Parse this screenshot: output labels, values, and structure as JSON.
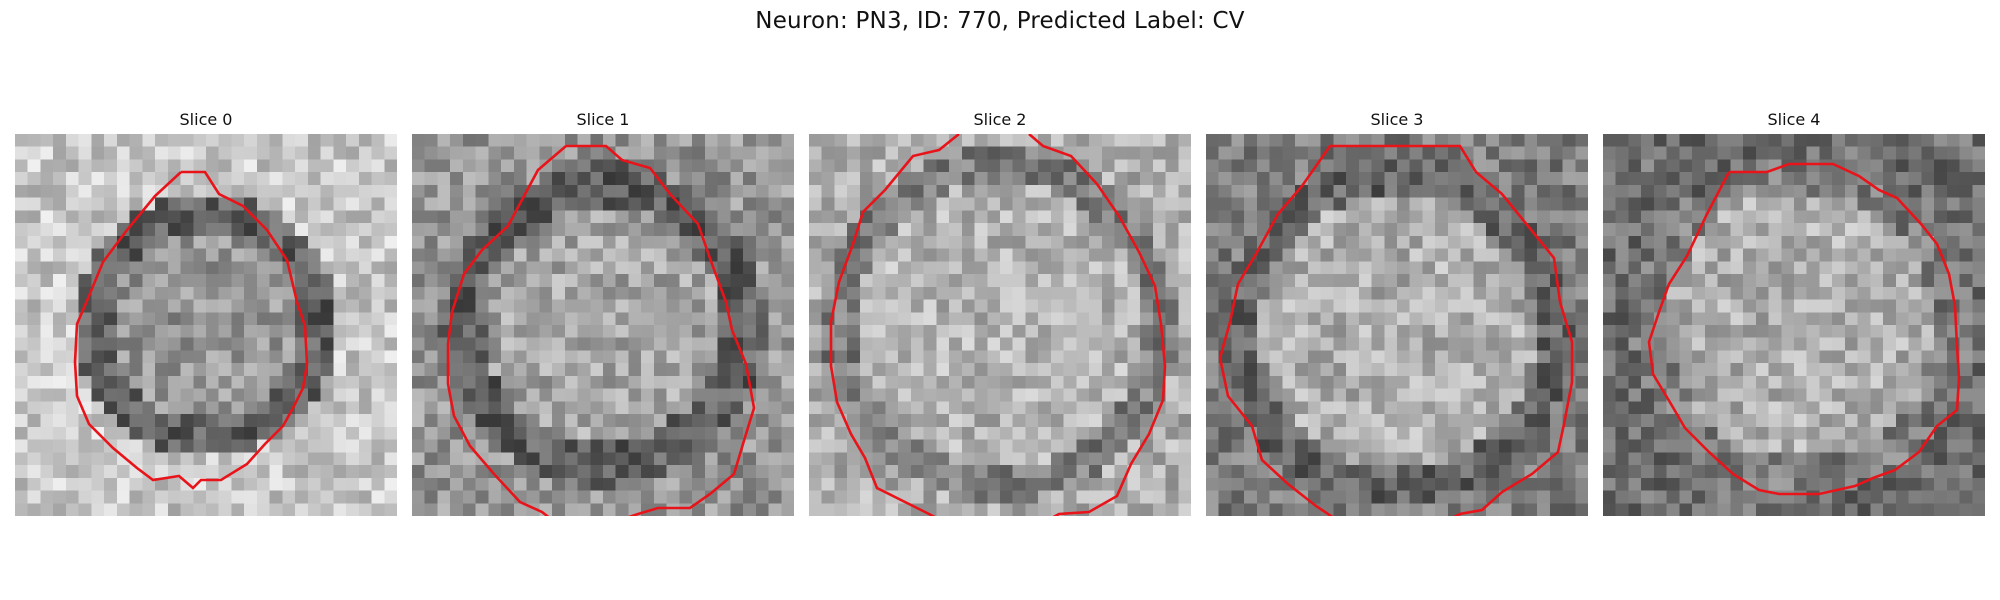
{
  "figure": {
    "title": "Neuron: PN3, ID: 770, Predicted Label: CV"
  },
  "panels": [
    {
      "title": "Slice 0",
      "contour_color": "#e8141a"
    },
    {
      "title": "Slice 1",
      "contour_color": "#e8141a"
    },
    {
      "title": "Slice 2",
      "contour_color": "#e8141a"
    },
    {
      "title": "Slice 3",
      "contour_color": "#e8141a"
    },
    {
      "title": "Slice 4",
      "contour_color": "#e8141a"
    }
  ]
}
